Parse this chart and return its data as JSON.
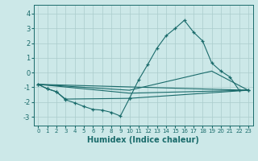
{
  "xlabel": "Humidex (Indice chaleur)",
  "background_color": "#cce8e8",
  "grid_color": "#aacccc",
  "line_color": "#1a6b6b",
  "xlim": [
    -0.5,
    23.5
  ],
  "ylim": [
    -3.6,
    4.6
  ],
  "xticks": [
    0,
    1,
    2,
    3,
    4,
    5,
    6,
    7,
    8,
    9,
    10,
    11,
    12,
    13,
    14,
    15,
    16,
    17,
    18,
    19,
    20,
    21,
    22,
    23
  ],
  "yticks": [
    -3,
    -2,
    -1,
    0,
    1,
    2,
    3,
    4
  ],
  "lines": [
    {
      "x": [
        0,
        1,
        2,
        3,
        10,
        11,
        12,
        13,
        14,
        15,
        16,
        17,
        18,
        19,
        20,
        21,
        22,
        23
      ],
      "y": [
        -0.8,
        -1.1,
        -1.3,
        -1.8,
        -1.75,
        -0.5,
        0.55,
        1.65,
        2.5,
        3.0,
        3.55,
        2.75,
        2.15,
        0.65,
        0.1,
        -0.3,
        -1.2,
        -1.2
      ],
      "marker": true
    },
    {
      "x": [
        0,
        1,
        2,
        3,
        4,
        5,
        6,
        7,
        8,
        9,
        10,
        23
      ],
      "y": [
        -0.8,
        -1.1,
        -1.3,
        -1.85,
        -2.05,
        -2.3,
        -2.5,
        -2.55,
        -2.7,
        -2.95,
        -1.75,
        -1.2
      ],
      "marker": true
    },
    {
      "x": [
        0,
        23
      ],
      "y": [
        -0.8,
        -1.2
      ],
      "marker": false
    },
    {
      "x": [
        0,
        10,
        23
      ],
      "y": [
        -0.8,
        -1.4,
        -1.2
      ],
      "marker": false
    },
    {
      "x": [
        0,
        10,
        19,
        23
      ],
      "y": [
        -0.8,
        -1.2,
        0.1,
        -1.2
      ],
      "marker": false
    }
  ]
}
